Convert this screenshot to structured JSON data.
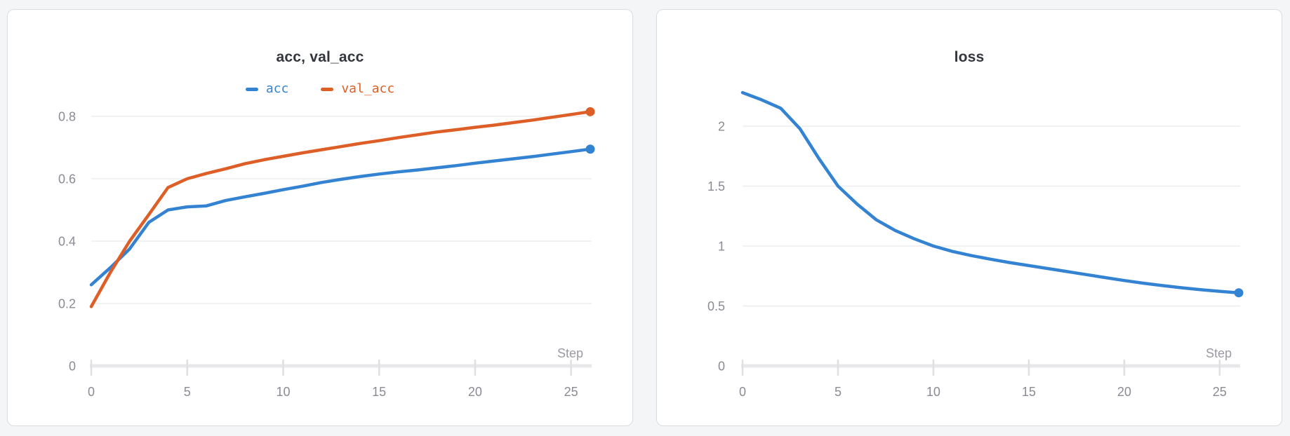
{
  "ui": {
    "background": "#f4f5f6",
    "card_bg": "#ffffff",
    "card_border": "#dcdcdf",
    "title_color": "#33363c",
    "grid_color": "#ededef",
    "axis_color": "#e8e8ea",
    "tick_color": "#e0e0e4",
    "tick_label_color": "#8b8b94",
    "step_label_color": "#9a9aa2",
    "series_blue": "#3383d2",
    "series_orange": "#dd5f27"
  },
  "chart_data": [
    {
      "type": "line",
      "title": "acc, val_acc",
      "xlabel": "Step",
      "legend": true,
      "legend_position": "top-center",
      "grid": true,
      "xlim": [
        0,
        26
      ],
      "ylim": [
        0,
        0.8
      ],
      "xticks": [
        0,
        5,
        10,
        15,
        20,
        25
      ],
      "xtick_labels": [
        "0",
        "5",
        "10",
        "15",
        "20",
        "25"
      ],
      "yticks": [
        0,
        0.2,
        0.4,
        0.6,
        0.8
      ],
      "ytick_labels": [
        "0",
        "0.2",
        "0.4",
        "0.6",
        "0.8"
      ],
      "x": [
        0,
        1,
        2,
        3,
        4,
        5,
        6,
        7,
        8,
        9,
        10,
        11,
        12,
        13,
        14,
        15,
        16,
        17,
        18,
        19,
        20,
        21,
        22,
        23,
        24,
        25,
        26
      ],
      "series": [
        {
          "name": "acc",
          "color": "#3383d2",
          "values": [
            0.26,
            0.315,
            0.375,
            0.46,
            0.5,
            0.51,
            0.513,
            0.53,
            0.542,
            0.553,
            0.565,
            0.576,
            0.588,
            0.598,
            0.607,
            0.615,
            0.622,
            0.628,
            0.635,
            0.642,
            0.65,
            0.657,
            0.664,
            0.671,
            0.679,
            0.687,
            0.695
          ]
        },
        {
          "name": "val_acc",
          "color": "#dd5f27",
          "values": [
            0.19,
            0.3,
            0.4,
            0.485,
            0.572,
            0.6,
            0.617,
            0.632,
            0.648,
            0.661,
            0.672,
            0.683,
            0.693,
            0.703,
            0.713,
            0.722,
            0.732,
            0.741,
            0.75,
            0.757,
            0.765,
            0.772,
            0.78,
            0.788,
            0.797,
            0.806,
            0.815
          ]
        }
      ]
    },
    {
      "type": "line",
      "title": "loss",
      "xlabel": "Step",
      "legend": false,
      "grid": true,
      "xlim": [
        0,
        26
      ],
      "ylim": [
        0,
        2
      ],
      "xticks": [
        0,
        5,
        10,
        15,
        20,
        25
      ],
      "xtick_labels": [
        "0",
        "5",
        "10",
        "15",
        "20",
        "25"
      ],
      "yticks": [
        0,
        0.5,
        1,
        1.5,
        2
      ],
      "ytick_labels": [
        "0",
        "0.5",
        "1",
        "1.5",
        "2"
      ],
      "x": [
        0,
        1,
        2,
        3,
        4,
        5,
        6,
        7,
        8,
        9,
        10,
        11,
        12,
        13,
        14,
        15,
        16,
        17,
        18,
        19,
        20,
        21,
        22,
        23,
        24,
        25,
        26
      ],
      "series": [
        {
          "name": "loss",
          "color": "#3383d2",
          "values": [
            2.28,
            2.22,
            2.15,
            1.98,
            1.73,
            1.5,
            1.35,
            1.22,
            1.13,
            1.06,
            1.0,
            0.955,
            0.92,
            0.89,
            0.862,
            0.837,
            0.812,
            0.787,
            0.762,
            0.737,
            0.712,
            0.69,
            0.67,
            0.652,
            0.636,
            0.622,
            0.61
          ]
        }
      ]
    }
  ]
}
